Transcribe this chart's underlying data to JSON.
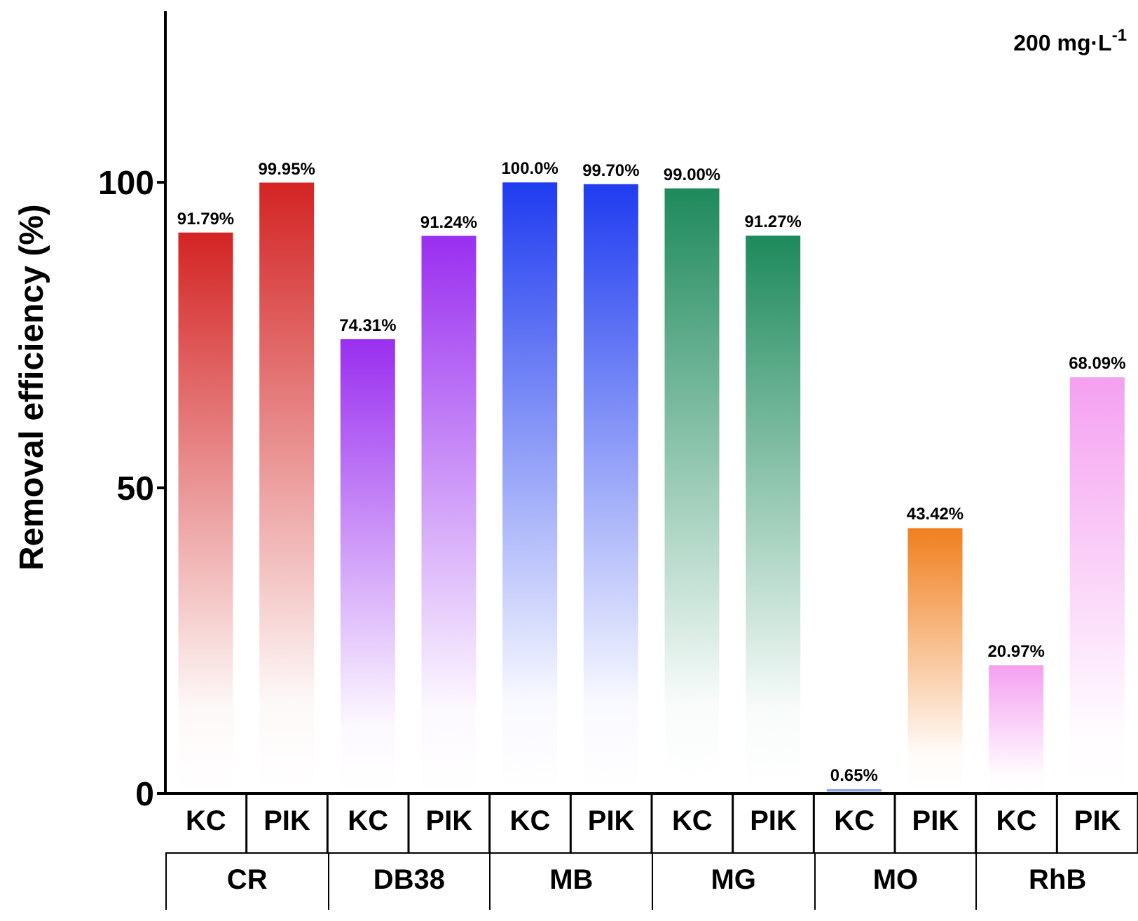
{
  "chart_data": {
    "type": "bar",
    "ylabel": "Removal efficiency (%)",
    "categories": [
      "KC",
      "PIK",
      "KC",
      "PIK",
      "KC",
      "PIK",
      "KC",
      "PIK",
      "KC",
      "PIK",
      "KC",
      "PIK"
    ],
    "values": [
      91.79,
      99.95,
      74.31,
      91.24,
      100.0,
      99.7,
      99.0,
      91.27,
      0.65,
      43.42,
      20.97,
      68.09
    ],
    "value_labels": [
      "91.79%",
      "99.95%",
      "74.31%",
      "91.24%",
      "100.0%",
      "99.70%",
      "99.00%",
      "91.27%",
      "0.65%",
      "43.42%",
      "20.97%",
      "68.09%"
    ],
    "colors": [
      "#d42424",
      "#d42424",
      "#9a2ff0",
      "#9a2ff0",
      "#1f3cf0",
      "#1f3cf0",
      "#1e8a5c",
      "#1e8a5c",
      "#5a7ae0",
      "#f07f1e",
      "#f4a0f0",
      "#f4a0f0"
    ],
    "ylim": [
      0,
      128
    ],
    "yticks": [
      0,
      50,
      100
    ],
    "annotations": [
      "200 mg·L$^{-1}$",
      "CR",
      "DB38",
      "MB",
      "MG",
      "MO",
      "RhB"
    ]
  }
}
